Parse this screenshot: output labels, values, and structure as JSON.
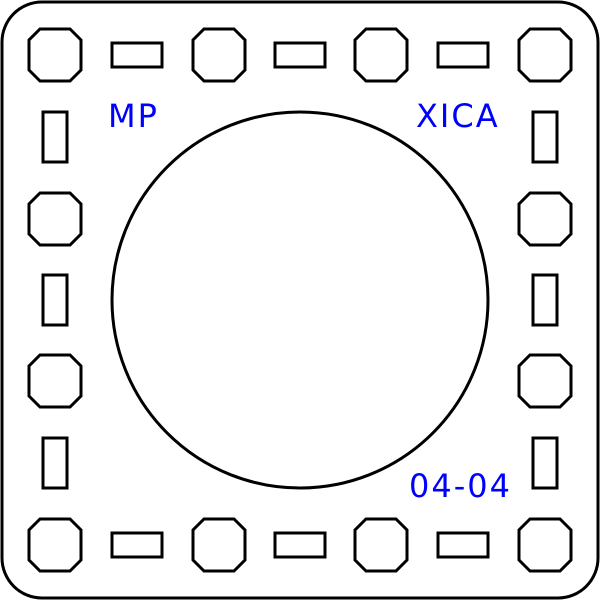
{
  "labels": {
    "top_left": "MP",
    "top_right": "XICA",
    "bottom_right": "04-04"
  },
  "colors": {
    "outline": "#000000",
    "label": "#0000ff",
    "background": "#ffffff"
  }
}
